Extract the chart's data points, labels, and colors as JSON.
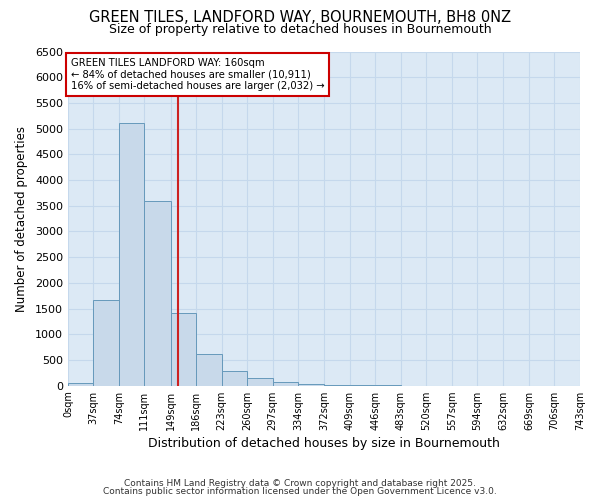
{
  "title_line1": "GREEN TILES, LANDFORD WAY, BOURNEMOUTH, BH8 0NZ",
  "title_line2": "Size of property relative to detached houses in Bournemouth",
  "xlabel": "Distribution of detached houses by size in Bournemouth",
  "ylabel": "Number of detached properties",
  "footnote1": "Contains HM Land Registry data © Crown copyright and database right 2025.",
  "footnote2": "Contains public sector information licensed under the Open Government Licence v3.0.",
  "bin_labels": [
    "0sqm",
    "37sqm",
    "74sqm",
    "111sqm",
    "149sqm",
    "186sqm",
    "223sqm",
    "260sqm",
    "297sqm",
    "334sqm",
    "372sqm",
    "409sqm",
    "446sqm",
    "483sqm",
    "520sqm",
    "557sqm",
    "594sqm",
    "632sqm",
    "669sqm",
    "706sqm",
    "743sqm"
  ],
  "bin_edges": [
    0,
    37,
    74,
    111,
    149,
    186,
    223,
    260,
    297,
    334,
    372,
    409,
    446,
    483,
    520,
    557,
    594,
    632,
    669,
    706,
    743
  ],
  "bar_heights": [
    60,
    1670,
    5100,
    3600,
    1420,
    610,
    295,
    145,
    75,
    40,
    20,
    10,
    5,
    0,
    0,
    0,
    0,
    0,
    0,
    0
  ],
  "bar_color": "#c8d9ea",
  "bar_edge_color": "#6699bb",
  "red_line_x": 160,
  "annotation_line1": "GREEN TILES LANDFORD WAY: 160sqm",
  "annotation_line2": "← 84% of detached houses are smaller (10,911)",
  "annotation_line3": "16% of semi-detached houses are larger (2,032) →",
  "annotation_box_color": "#ffffff",
  "annotation_box_edge_color": "#cc0000",
  "ylim": [
    0,
    6500
  ],
  "yticks": [
    0,
    500,
    1000,
    1500,
    2000,
    2500,
    3000,
    3500,
    4000,
    4500,
    5000,
    5500,
    6000,
    6500
  ],
  "grid_color": "#c5d8ec",
  "plot_bg_color": "#dce9f5",
  "fig_bg_color": "#ffffff"
}
